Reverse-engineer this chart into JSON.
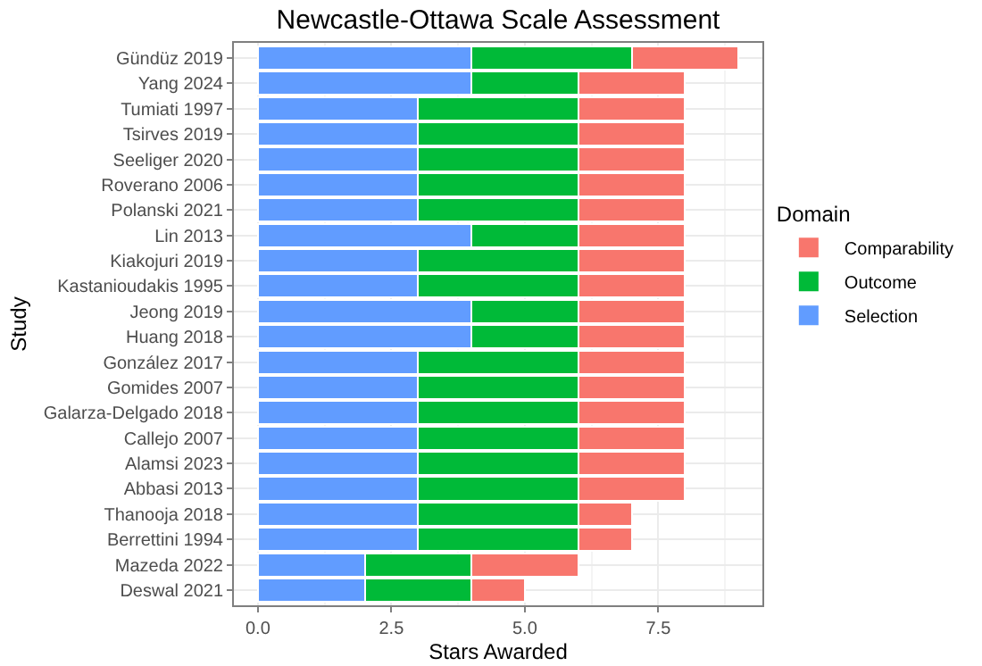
{
  "chart_data": {
    "type": "bar",
    "orientation": "horizontal",
    "stacked": true,
    "title": "Newcastle-Ottawa Scale Assessment",
    "xlabel": "Stars Awarded",
    "ylabel": "Study",
    "legend_title": "Domain",
    "legend": "right",
    "grid": true,
    "categories": [
      "Gündüz 2019",
      "Yang 2024",
      "Tumiati 1997",
      "Tsirves 2019",
      "Seeliger 2020",
      "Roverano 2006",
      "Polanski 2021",
      "Lin 2013",
      "Kiakojuri 2019",
      "Kastanioudakis 1995",
      "Jeong 2019",
      "Huang 2018",
      "González 2017",
      "Gomides 2007",
      "Galarza-Delgado 2018",
      "Callejo 2007",
      "Alamsi 2023",
      "Abbasi 2013",
      "Thanooja 2018",
      "Berrettini 1994",
      "Mazeda 2022",
      "Deswal 2021"
    ],
    "series": [
      {
        "name": "Selection",
        "color": "#619cff",
        "values": [
          4,
          4,
          3,
          3,
          3,
          3,
          3,
          4,
          3,
          3,
          4,
          4,
          3,
          3,
          3,
          3,
          3,
          3,
          3,
          3,
          2,
          2
        ]
      },
      {
        "name": "Outcome",
        "color": "#00ba38",
        "values": [
          3,
          2,
          3,
          3,
          3,
          3,
          3,
          2,
          3,
          3,
          2,
          2,
          3,
          3,
          3,
          3,
          3,
          3,
          3,
          3,
          2,
          2
        ]
      },
      {
        "name": "Comparability",
        "color": "#f8766d",
        "values": [
          2,
          2,
          2,
          2,
          2,
          2,
          2,
          2,
          2,
          2,
          2,
          2,
          2,
          2,
          2,
          2,
          2,
          2,
          1,
          1,
          2,
          1
        ]
      }
    ],
    "xlim": [
      -0.45,
      9.45
    ],
    "xticks": [
      {
        "value": 0,
        "label": "0.0"
      },
      {
        "value": 2.5,
        "label": "2.5"
      },
      {
        "value": 5,
        "label": "5.0"
      },
      {
        "value": 7.5,
        "label": "7.5"
      }
    ]
  }
}
